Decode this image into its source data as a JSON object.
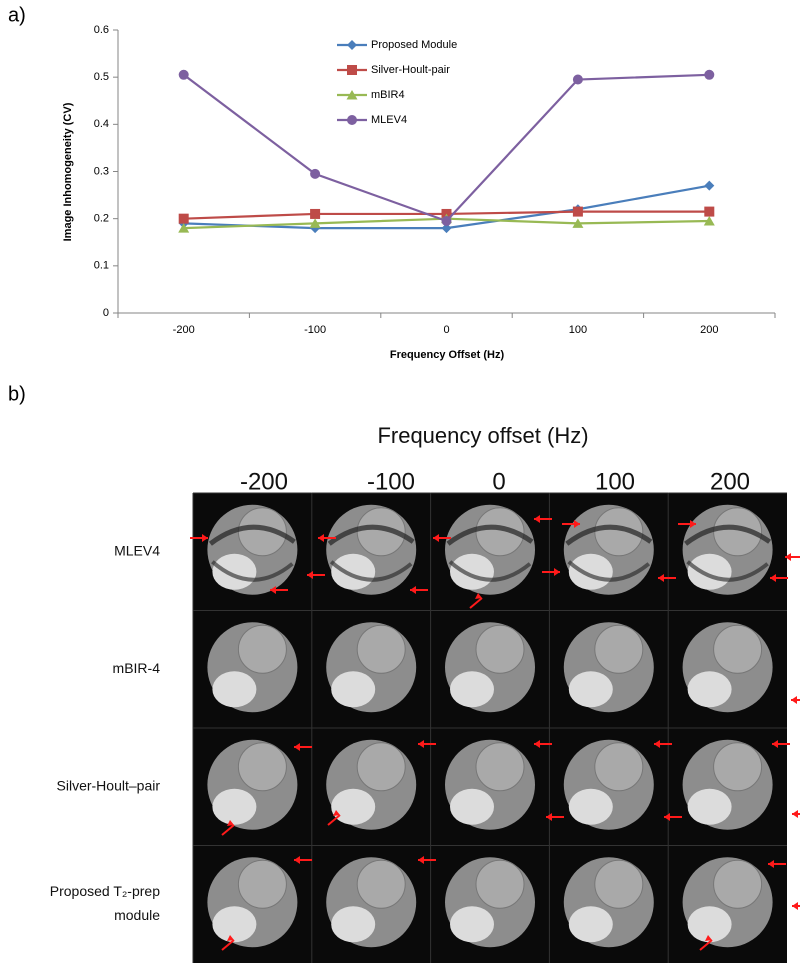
{
  "chart_data": {
    "type": "line",
    "panel_label": "a)",
    "xlabel": "Frequency Offset (Hz)",
    "ylabel": "Image Inhomogeneity (CV)",
    "categories": [
      "-200",
      "-100",
      "0",
      "100",
      "200"
    ],
    "ylim": [
      0,
      0.6
    ],
    "yticks": [
      0,
      0.1,
      0.2,
      0.3,
      0.4,
      0.5,
      0.6
    ],
    "legend": "top",
    "series": [
      {
        "name": "Proposed Module",
        "color": "#4a7ebb",
        "marker": "diamond",
        "values": [
          0.19,
          0.18,
          0.18,
          0.22,
          0.27
        ]
      },
      {
        "name": "Silver-Hoult-pair",
        "color": "#be4b48",
        "marker": "square",
        "values": [
          0.2,
          0.21,
          0.21,
          0.215,
          0.215
        ]
      },
      {
        "name": "mBIR4",
        "color": "#98b954",
        "marker": "triangle",
        "values": [
          0.18,
          0.19,
          0.2,
          0.19,
          0.195
        ]
      },
      {
        "name": "MLEV4",
        "color": "#7d60a0",
        "marker": "circle",
        "values": [
          0.505,
          0.295,
          0.195,
          0.495,
          0.505
        ]
      }
    ]
  },
  "panel_b": {
    "panel_label": "b)",
    "title": "Frequency offset (Hz)",
    "columns": [
      "-200",
      "-100",
      "0",
      "100",
      "200"
    ],
    "rows": [
      [
        "MLEV4"
      ],
      [
        "mBIR-4"
      ],
      [
        "Silver-Hoult–pair"
      ],
      [
        "Proposed T₂-prep",
        "module"
      ]
    ]
  }
}
